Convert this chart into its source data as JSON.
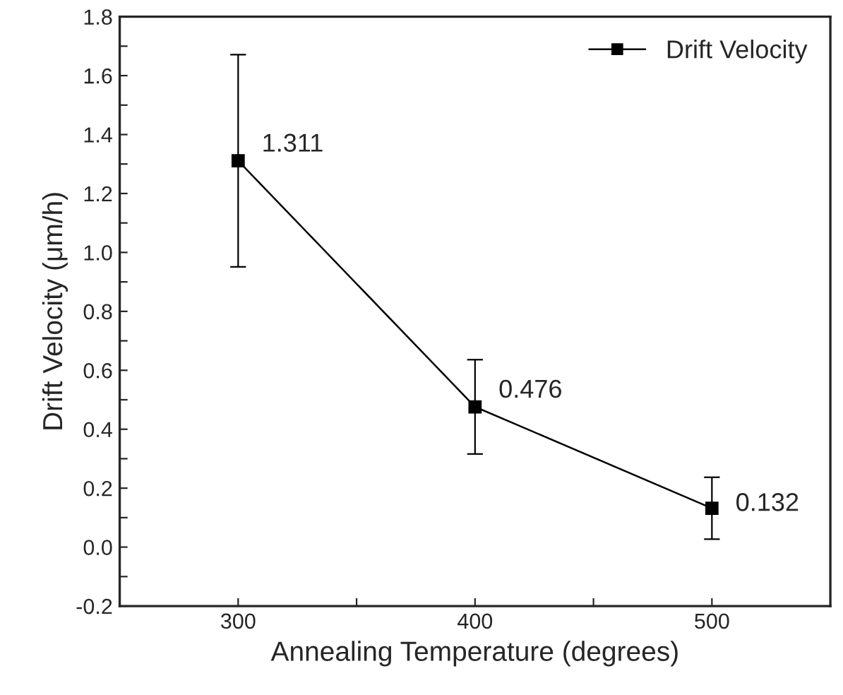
{
  "chart_data": {
    "type": "line",
    "xlabel": "Annealing Temperature (degrees)",
    "ylabel": "Drift Velocity (μm/h)",
    "x": [
      300,
      400,
      500
    ],
    "series": [
      {
        "name": "Drift Velocity",
        "color": "#000000",
        "values": [
          1.311,
          0.476,
          0.132
        ],
        "errors": [
          0.36,
          0.16,
          0.105
        ]
      }
    ],
    "xlim": [
      250,
      550
    ],
    "xticks": [
      300,
      {
        "value": 350,
        "label": null
      },
      400,
      {
        "value": 450,
        "label": null
      },
      500
    ],
    "ylim": [
      -0.2,
      1.8
    ],
    "yticks": [
      {
        "value": -0.2,
        "label": "-0.2"
      },
      {
        "value": -0.1,
        "label": null
      },
      {
        "value": 0.0,
        "label": "0.0"
      },
      {
        "value": 0.1,
        "label": null
      },
      0.2,
      {
        "value": 0.3,
        "label": null
      },
      0.4,
      {
        "value": 0.5,
        "label": null
      },
      0.6,
      {
        "value": 0.7,
        "label": null
      },
      0.8,
      {
        "value": 0.9,
        "label": null
      },
      {
        "value": 1.0,
        "label": "1.0"
      },
      {
        "value": 1.1,
        "label": null
      },
      1.2,
      {
        "value": 1.3,
        "label": null
      },
      1.4,
      {
        "value": 1.5,
        "label": null
      },
      1.6,
      {
        "value": 1.7,
        "label": null
      },
      1.8
    ],
    "data_labels": true,
    "marker": "square",
    "line_style": "solid",
    "legend": "top right",
    "grid": false
  }
}
